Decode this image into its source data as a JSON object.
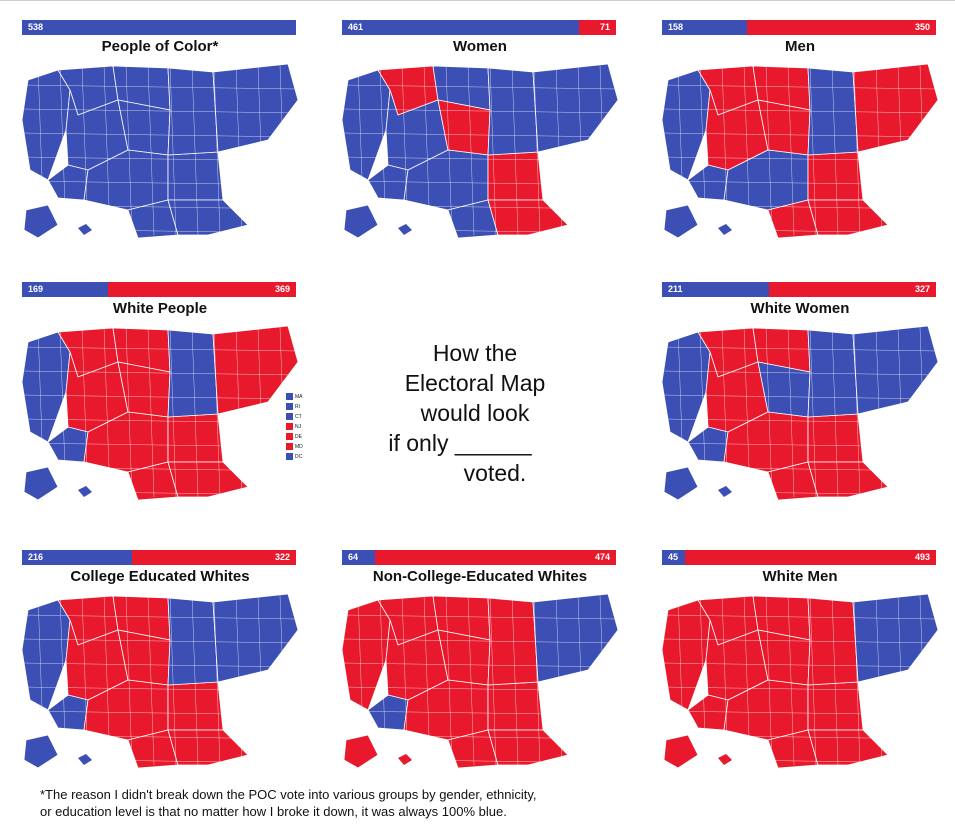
{
  "center_text": {
    "line1": "How the",
    "line2": "Electoral Map",
    "line3": "would look",
    "line4": "if only ______",
    "line5": "voted."
  },
  "footnote": {
    "line1": "*The reason I didn't break down the POC vote into various groups by gender, ethnicity,",
    "line2": "or education level is that no matter how I broke it down, it was always 100% blue."
  },
  "colors": {
    "blue": "#3b4fb4",
    "red": "#e8192c",
    "border": "#ffffff"
  },
  "panels": [
    {
      "title": "People of Color*",
      "blue": 538,
      "red": 0,
      "blue_label": "538",
      "red_label": "",
      "regions": [
        "b",
        "b",
        "b",
        "b",
        "b",
        "b",
        "b",
        "b",
        "b",
        "b",
        "b",
        "b"
      ]
    },
    {
      "title": "Women",
      "blue": 461,
      "red": 71,
      "blue_label": "461",
      "red_label": "71",
      "regions": [
        "b",
        "r",
        "b",
        "b",
        "b",
        "r",
        "b",
        "b",
        "r",
        "r",
        "b",
        "b"
      ]
    },
    {
      "title": "Men",
      "blue": 158,
      "red": 350,
      "blue_label": "158",
      "red_label": "350",
      "regions": [
        "b",
        "r",
        "r",
        "b",
        "r",
        "r",
        "b",
        "r",
        "r",
        "r",
        "b",
        "r"
      ]
    },
    {
      "title": "White People",
      "blue": 169,
      "red": 369,
      "blue_label": "169",
      "red_label": "369",
      "regions": [
        "b",
        "r",
        "r",
        "b",
        "r",
        "r",
        "r",
        "r",
        "r",
        "r",
        "b",
        "r"
      ]
    },
    {
      "title": "White Women",
      "blue": 211,
      "red": 327,
      "blue_label": "211",
      "red_label": "327",
      "regions": [
        "b",
        "r",
        "r",
        "b",
        "r",
        "b",
        "r",
        "r",
        "r",
        "r",
        "b",
        "b"
      ]
    },
    {
      "title": "College Educated Whites",
      "blue": 216,
      "red": 322,
      "blue_label": "216",
      "red_label": "322",
      "regions": [
        "b",
        "r",
        "r",
        "b",
        "r",
        "r",
        "r",
        "r",
        "r",
        "r",
        "b",
        "b"
      ]
    },
    {
      "title": "Non-College-Educated Whites",
      "blue": 64,
      "red": 474,
      "blue_label": "64",
      "red_label": "474",
      "regions": [
        "r",
        "r",
        "r",
        "b",
        "r",
        "r",
        "r",
        "r",
        "r",
        "r",
        "r",
        "b"
      ]
    },
    {
      "title": "White Men",
      "blue": 45,
      "red": 493,
      "blue_label": "45",
      "red_label": "493",
      "regions": [
        "r",
        "r",
        "r",
        "r",
        "r",
        "r",
        "r",
        "r",
        "r",
        "r",
        "r",
        "b"
      ]
    }
  ],
  "legend": {
    "items": [
      {
        "label": "MA",
        "color": "b"
      },
      {
        "label": "RI",
        "color": "b"
      },
      {
        "label": "CT",
        "color": "b"
      },
      {
        "label": "NJ",
        "color": "r"
      },
      {
        "label": "DE",
        "color": "r"
      },
      {
        "label": "MD",
        "color": "r"
      },
      {
        "label": "DC",
        "color": "b"
      }
    ]
  }
}
